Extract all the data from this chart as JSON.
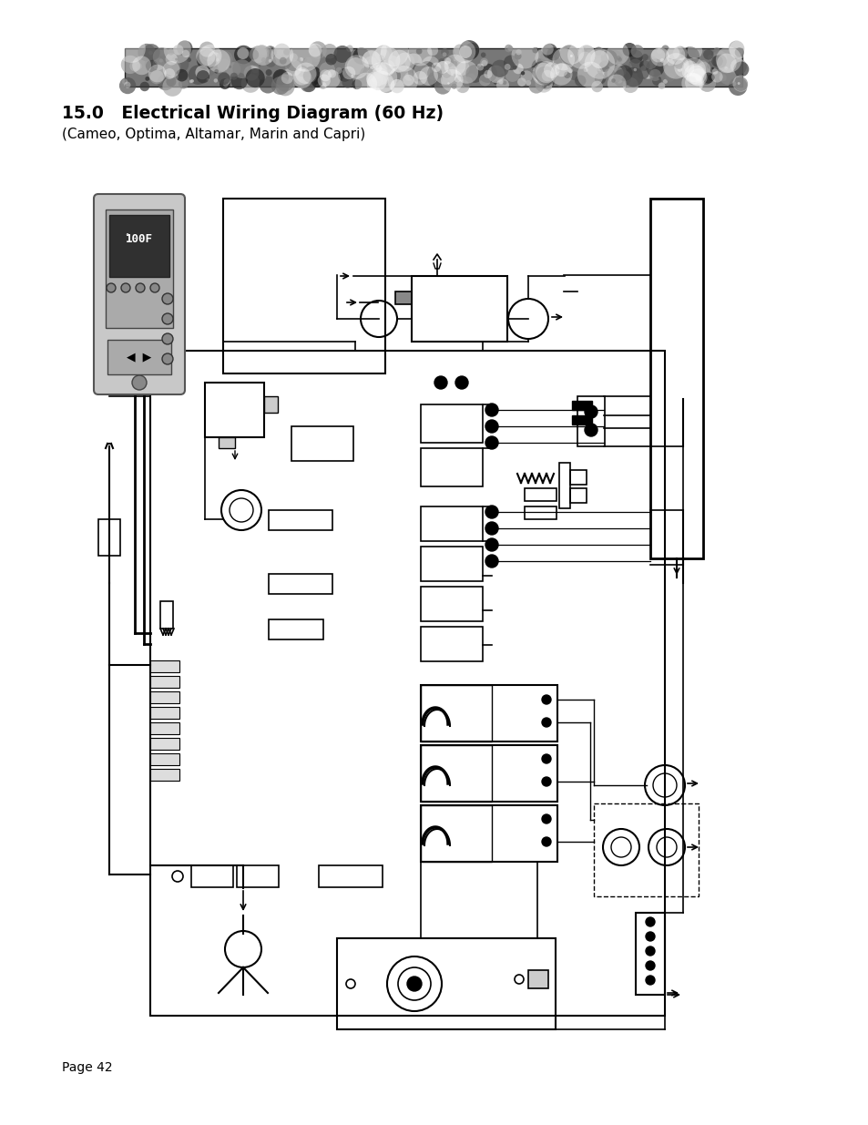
{
  "title_bold": "15.0   Electrical Wiring Diagram (60 Hz)",
  "title_sub": "(Cameo, Optima, Altamar, Marin and Capri)",
  "page_label": "Page 42",
  "bg_color": "#ffffff",
  "line_color": "#000000"
}
